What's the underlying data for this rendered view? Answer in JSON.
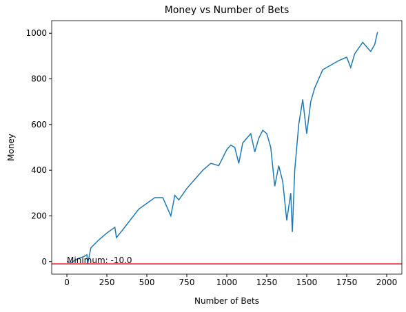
{
  "chart_data": {
    "type": "line",
    "title": "Money vs Number of Bets",
    "xlabel": "Number of Bets",
    "ylabel": "Money",
    "x": [
      0,
      25,
      50,
      75,
      100,
      125,
      130,
      150,
      200,
      250,
      300,
      310,
      350,
      400,
      450,
      500,
      550,
      600,
      650,
      675,
      700,
      750,
      800,
      850,
      900,
      950,
      1000,
      1025,
      1050,
      1075,
      1100,
      1150,
      1175,
      1200,
      1225,
      1250,
      1275,
      1300,
      1325,
      1350,
      1375,
      1400,
      1410,
      1425,
      1450,
      1475,
      1500,
      1525,
      1550,
      1575,
      1600,
      1650,
      1700,
      1750,
      1775,
      1800,
      1850,
      1875,
      1900,
      1925,
      1943
    ],
    "values": [
      0,
      -5,
      5,
      15,
      20,
      30,
      -10,
      60,
      95,
      125,
      150,
      105,
      140,
      185,
      230,
      255,
      280,
      280,
      200,
      290,
      270,
      320,
      360,
      400,
      430,
      420,
      490,
      510,
      500,
      430,
      520,
      560,
      480,
      540,
      575,
      560,
      500,
      330,
      420,
      350,
      180,
      300,
      130,
      400,
      600,
      710,
      560,
      700,
      760,
      800,
      840,
      860,
      880,
      895,
      850,
      910,
      960,
      940,
      920,
      950,
      1005
    ],
    "color": "#1f77b4",
    "hline": {
      "value": -10,
      "color": "red"
    },
    "annotation": {
      "text": "Minimum: -10.0",
      "x": 0,
      "y": -10
    },
    "xlim": [
      -95,
      2095
    ],
    "ylim": [
      -55,
      1055
    ],
    "xticks": [
      0,
      250,
      500,
      750,
      1000,
      1250,
      1500,
      1750,
      2000
    ],
    "yticks": [
      0,
      200,
      400,
      600,
      800,
      1000
    ],
    "grid": false
  }
}
